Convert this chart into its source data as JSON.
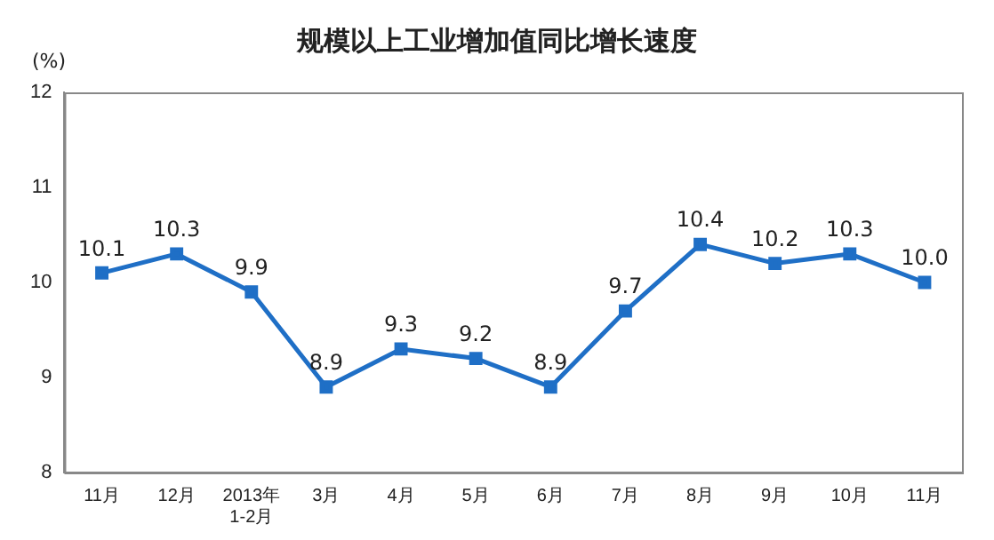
{
  "chart_data": {
    "type": "line",
    "title": "规模以上工业增加值同比增长速度",
    "ylabel": "(%)",
    "categories": [
      "11月",
      "12月",
      "2013年\n1-2月",
      "3月",
      "4月",
      "5月",
      "6月",
      "7月",
      "8月",
      "9月",
      "10月",
      "11月"
    ],
    "series": [
      {
        "color": "#1f6fc6",
        "values": [
          10.1,
          10.3,
          9.9,
          8.9,
          9.3,
          9.2,
          8.9,
          9.7,
          10.4,
          10.2,
          10.3,
          10.0
        ],
        "value_labels": [
          "10.1",
          "10.3",
          "9.9",
          "8.9",
          "9.3",
          "9.2",
          "8.9",
          "9.7",
          "10.4",
          "10.2",
          "10.3",
          "10.0"
        ]
      }
    ],
    "ylim": [
      8,
      12
    ],
    "yticks": [
      8,
      9,
      10,
      11,
      12
    ],
    "grid": false,
    "legend": false,
    "marker": "square",
    "line_style": "solid"
  }
}
